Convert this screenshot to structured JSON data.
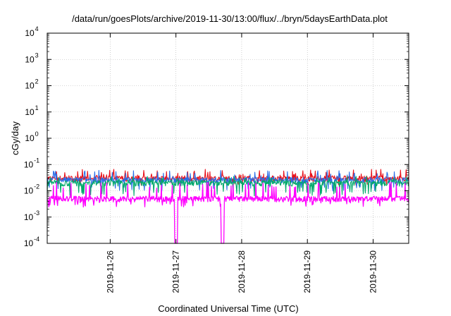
{
  "chart_data": {
    "type": "line",
    "title": "/data/run/goesPlots/archive/2019-11-30/13:00/flux/../bryn/5daysEarthData.plot",
    "xlabel": "Coordinated Universal Time (UTC)",
    "ylabel": "cGy/day",
    "yscale": "log",
    "ylim": [
      0.0001,
      10000
    ],
    "xlim": [
      "2019-11-25T01:00",
      "2019-11-30T13:00"
    ],
    "x_ticks": [
      "2019-11-26",
      "2019-11-27",
      "2019-11-28",
      "2019-11-29",
      "2019-11-30"
    ],
    "y_ticks": [
      {
        "value": 0.0001,
        "base": "10",
        "exp": "-4"
      },
      {
        "value": 0.001,
        "base": "10",
        "exp": "-3"
      },
      {
        "value": 0.01,
        "base": "10",
        "exp": "-2"
      },
      {
        "value": 0.1,
        "base": "10",
        "exp": "-1"
      },
      {
        "value": 1,
        "base": "10",
        "exp": "0"
      },
      {
        "value": 10,
        "base": "10",
        "exp": "1"
      },
      {
        "value": 100,
        "base": "10",
        "exp": "2"
      },
      {
        "value": 1000,
        "base": "10",
        "exp": "3"
      },
      {
        "value": 10000,
        "base": "10",
        "exp": "4"
      }
    ],
    "grid": true,
    "legend": "none",
    "series": [
      {
        "color": "#e8101a",
        "base": 0.03,
        "spike": 0.055,
        "dip": 0.02
      },
      {
        "color": "#2a6ee8",
        "base": 0.026,
        "spike": 0.05,
        "dip": 0.012
      },
      {
        "color": "#00a86b",
        "base": 0.02,
        "spike": 0.03,
        "dip": 0.008
      },
      {
        "color": "#ff00ff",
        "base": 0.005,
        "spike": 0.018,
        "dip": 0.003,
        "dropouts": [
          "2019-11-27T00:00",
          "2019-11-27T17:00"
        ]
      }
    ]
  }
}
